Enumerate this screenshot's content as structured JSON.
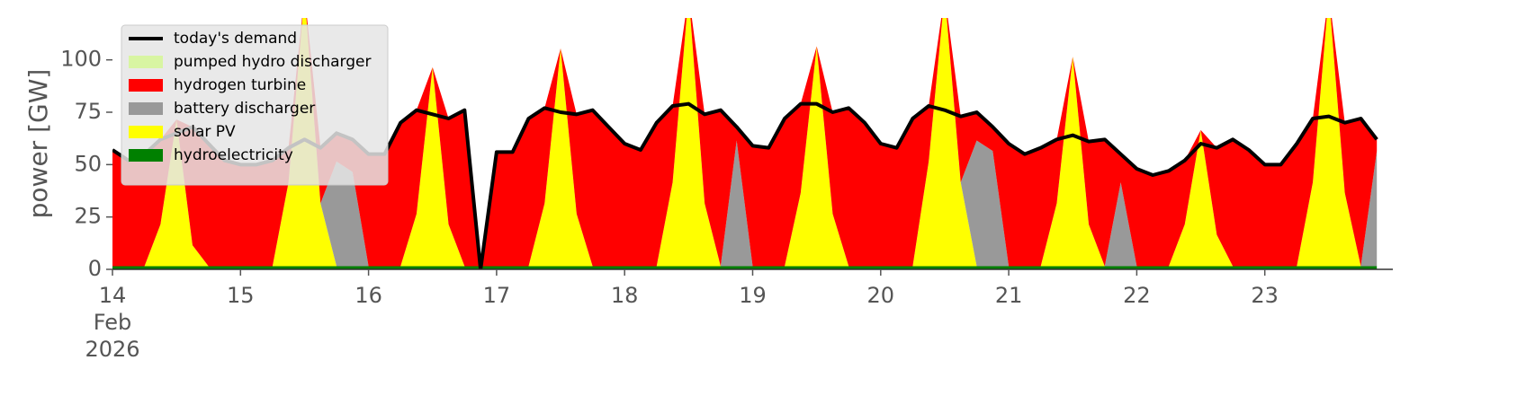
{
  "chart_data": {
    "type": "stacked_area",
    "y_label": "power [GW]",
    "legend": "upper left",
    "xlim": [
      14,
      24
    ],
    "xticks": [
      {
        "value": 14,
        "label": "14\nFeb\n2026"
      },
      15,
      16,
      17,
      18,
      19,
      20,
      21,
      22,
      23
    ],
    "ylim": [
      0,
      120
    ],
    "yticks": [
      0,
      25,
      50,
      75,
      100
    ],
    "x": [
      14,
      14.125,
      14.25,
      14.375,
      14.5,
      14.625,
      14.75,
      14.875,
      15,
      15.125,
      15.25,
      15.375,
      15.5,
      15.625,
      15.75,
      15.875,
      16,
      16.125,
      16.25,
      16.375,
      16.5,
      16.625,
      16.75,
      16.875,
      17,
      17.125,
      17.25,
      17.375,
      17.5,
      17.625,
      17.75,
      17.875,
      18,
      18.125,
      18.25,
      18.375,
      18.5,
      18.625,
      18.75,
      18.875,
      19,
      19.125,
      19.25,
      19.375,
      19.5,
      19.625,
      19.75,
      19.875,
      20,
      20.125,
      20.25,
      20.375,
      20.5,
      20.625,
      20.75,
      20.875,
      21,
      21.125,
      21.25,
      21.375,
      21.5,
      21.625,
      21.75,
      21.875,
      22,
      22.125,
      22.25,
      22.375,
      22.5,
      22.625,
      22.75,
      22.875,
      23,
      23.125,
      23.25,
      23.375,
      23.5,
      23.625,
      23.75,
      23.875
    ],
    "line": {
      "name": "today's demand",
      "color": "#000000",
      "values": [
        57,
        52,
        55,
        62,
        65,
        68,
        60,
        52,
        50,
        50,
        52,
        58,
        62,
        58,
        65,
        62,
        55,
        55,
        70,
        76,
        74,
        72,
        76,
        0,
        56,
        56,
        72,
        77,
        75,
        74,
        76,
        68,
        60,
        57,
        70,
        78,
        79,
        74,
        76,
        68,
        59,
        58,
        72,
        79,
        79,
        75,
        77,
        70,
        60,
        58,
        72,
        78,
        76,
        73,
        75,
        68,
        60,
        55,
        58,
        62,
        64,
        61,
        62,
        55,
        48,
        45,
        47,
        52,
        60,
        58,
        62,
        57,
        50,
        50,
        60,
        72,
        73,
        70,
        72,
        62
      ]
    },
    "series": [
      {
        "name": "hydroelectricity",
        "color": "#008000",
        "values": [
          1.5,
          1.5,
          1.5,
          1.5,
          1.5,
          1.5,
          1.5,
          1.5,
          1.5,
          1.5,
          1.5,
          1.5,
          1.5,
          1.5,
          1.5,
          1.5,
          1.5,
          1.5,
          1.5,
          1.5,
          1.5,
          1.5,
          1.5,
          1.5,
          1.5,
          1.5,
          1.5,
          1.5,
          1.5,
          1.5,
          1.5,
          1.5,
          1.5,
          1.5,
          1.5,
          1.5,
          1.5,
          1.5,
          1.5,
          1.5,
          1.5,
          1.5,
          1.5,
          1.5,
          1.5,
          1.5,
          1.5,
          1.5,
          1.5,
          1.5,
          1.5,
          1.5,
          1.5,
          1.5,
          1.5,
          1.5,
          1.5,
          1.5,
          1.5,
          1.5,
          1.5,
          1.5,
          1.5,
          1.5,
          1.5,
          1.5,
          1.5,
          1.5,
          1.5,
          1.5,
          1.5,
          1.5,
          1.5,
          1.5,
          1.5,
          1.5,
          1.5,
          1.5,
          1.5,
          1.5
        ]
      },
      {
        "name": "solar PV",
        "color": "#ffff00",
        "values": [
          0,
          0,
          0,
          20,
          70,
          10,
          0,
          0,
          0,
          0,
          0,
          40,
          130,
          30,
          0,
          0,
          0,
          0,
          0,
          25,
          95,
          20,
          0,
          0,
          0,
          0,
          0,
          30,
          104,
          25,
          0,
          0,
          0,
          0,
          0,
          40,
          130,
          30,
          0,
          0,
          0,
          0,
          0,
          35,
          105,
          25,
          0,
          0,
          0,
          0,
          0,
          50,
          130,
          40,
          0,
          0,
          0,
          0,
          0,
          30,
          100,
          20,
          0,
          0,
          0,
          0,
          0,
          20,
          65,
          15,
          0,
          0,
          0,
          0,
          0,
          40,
          130,
          35,
          0,
          0
        ]
      },
      {
        "name": "battery discharger",
        "color": "#999999",
        "values": [
          0,
          0,
          0,
          0,
          0,
          0,
          0,
          0,
          0,
          0,
          0,
          0,
          0,
          0,
          50,
          45,
          0,
          0,
          0,
          0,
          0,
          0,
          0,
          0,
          0,
          0,
          0,
          0,
          0,
          0,
          0,
          0,
          0,
          0,
          0,
          0,
          0,
          0,
          0,
          60,
          0,
          0,
          0,
          0,
          0,
          0,
          0,
          0,
          0,
          0,
          0,
          0,
          0,
          0,
          60,
          55,
          0,
          0,
          0,
          0,
          0,
          0,
          0,
          40,
          0,
          0,
          0,
          0,
          0,
          0,
          0,
          0,
          0,
          0,
          0,
          0,
          0,
          0,
          0,
          55
        ]
      },
      {
        "name": "hydrogen turbine",
        "color": "#ff0000",
        "values": [
          55.5,
          50.5,
          53.5,
          40.5,
          0,
          56.5,
          58.5,
          50.5,
          48.5,
          48.5,
          50.5,
          16.5,
          0,
          26.5,
          13.5,
          15.5,
          53.5,
          53.5,
          68.5,
          49.5,
          0,
          50.5,
          74.5,
          0,
          54.5,
          54.5,
          70.5,
          45.5,
          0,
          47.5,
          74.5,
          66.5,
          58.5,
          55.5,
          68.5,
          36.5,
          0,
          42.5,
          74.5,
          6.5,
          57.5,
          56.5,
          70.5,
          42.5,
          0,
          48.5,
          75.5,
          68.5,
          58.5,
          56.5,
          70.5,
          26.5,
          0,
          31.5,
          13.5,
          11.5,
          58.5,
          53.5,
          56.5,
          30.5,
          0,
          39.5,
          60.5,
          13.5,
          46.5,
          43.5,
          45.5,
          30.5,
          0,
          41.5,
          60.5,
          55.5,
          48.5,
          48.5,
          58.5,
          30.5,
          0,
          33.5,
          70.5,
          5.5
        ]
      },
      {
        "name": "pumped hydro discharger",
        "color": "#d8f5a2",
        "values": [
          0,
          0,
          0,
          0,
          0,
          0,
          0,
          0,
          0,
          0,
          0,
          0,
          0,
          0,
          0,
          0,
          0,
          0,
          0,
          0,
          0,
          0,
          0,
          0,
          0,
          0,
          0,
          0,
          0,
          0,
          0,
          0,
          0,
          0,
          0,
          0,
          0,
          0,
          0,
          0,
          0,
          0,
          0,
          0,
          0,
          0,
          0,
          0,
          0,
          0,
          0,
          0,
          0,
          0,
          0,
          0,
          0,
          0,
          0,
          0,
          0,
          0,
          0,
          0,
          0,
          0,
          0,
          0,
          0,
          0,
          0,
          0,
          0,
          0,
          0,
          0,
          0,
          0,
          0,
          0
        ]
      }
    ]
  }
}
